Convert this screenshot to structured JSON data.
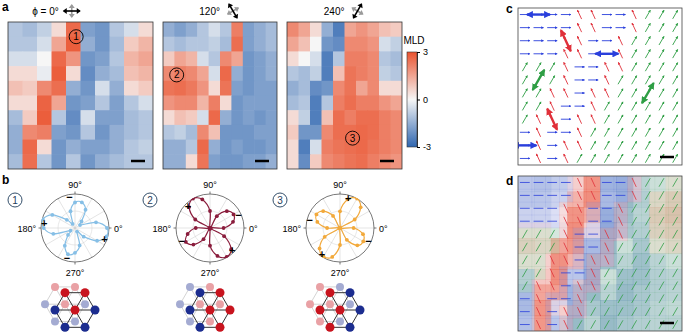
{
  "chart_data": [
    {
      "type": "heatmap",
      "panel": "a",
      "title": "ϕ = 0°",
      "phi": 0,
      "label": "1",
      "cells": [
        [
          -1.0,
          -1.2,
          -0.8,
          0.5,
          2.6,
          -1.8,
          -2.0,
          -1.0,
          -0.5,
          0.5
        ],
        [
          -1.0,
          -1.0,
          -0.5,
          1.5,
          2.8,
          -1.5,
          -2.0,
          -1.2,
          0.8,
          1.2
        ],
        [
          -0.5,
          -0.5,
          0.0,
          2.6,
          1.8,
          -2.0,
          -1.8,
          -1.0,
          1.2,
          1.5
        ],
        [
          0.5,
          0.5,
          -0.2,
          2.8,
          0.5,
          -2.2,
          -1.5,
          -1.2,
          1.0,
          1.2
        ],
        [
          1.0,
          0.8,
          2.0,
          2.5,
          -1.5,
          -2.0,
          -0.5,
          -1.5,
          0.5,
          0.8
        ],
        [
          0.5,
          0.5,
          2.7,
          1.5,
          -2.0,
          -1.8,
          -1.0,
          -1.8,
          -1.0,
          -0.5
        ],
        [
          -1.2,
          0.8,
          2.8,
          -1.0,
          -2.2,
          -0.5,
          -1.8,
          -1.8,
          -1.2,
          -1.0
        ],
        [
          -1.5,
          2.0,
          2.2,
          -1.8,
          -2.0,
          -1.0,
          -2.0,
          -1.5,
          -1.2,
          -1.0
        ],
        [
          -1.5,
          2.6,
          0.5,
          -2.0,
          -1.5,
          -1.8,
          -1.8,
          -1.5,
          -1.0,
          -0.8
        ],
        [
          -1.2,
          2.5,
          -1.0,
          -2.0,
          -1.0,
          -2.0,
          -1.5,
          -1.2,
          -1.0,
          -1.0
        ]
      ]
    },
    {
      "type": "heatmap",
      "title": "120°",
      "phi": 120,
      "label": "2",
      "cells": [
        [
          -1.5,
          -1.8,
          -1.5,
          -1.0,
          -0.5,
          -1.0,
          2.2,
          -1.8,
          -1.5,
          -1.2
        ],
        [
          -1.0,
          -1.2,
          -1.0,
          -1.0,
          -0.8,
          -1.2,
          2.5,
          -1.8,
          -1.5,
          -1.2
        ],
        [
          0.8,
          1.5,
          1.2,
          -0.5,
          -1.0,
          2.0,
          1.5,
          -2.0,
          -1.8,
          -1.5
        ],
        [
          2.0,
          2.2,
          2.0,
          1.5,
          -0.5,
          2.6,
          -1.5,
          -2.0,
          -1.8,
          -1.5
        ],
        [
          2.4,
          2.5,
          2.3,
          1.8,
          0.5,
          2.4,
          -1.8,
          -2.0,
          -1.8,
          -1.8
        ],
        [
          1.8,
          2.0,
          2.0,
          1.2,
          2.2,
          0.5,
          -2.0,
          -1.8,
          -1.8,
          -1.8
        ],
        [
          0.5,
          1.0,
          0.8,
          -0.5,
          2.6,
          -1.5,
          -2.0,
          -1.8,
          -2.0,
          -1.8
        ],
        [
          -1.0,
          -0.8,
          -1.2,
          2.0,
          1.0,
          -2.0,
          -2.0,
          -2.0,
          -1.8,
          -1.8
        ],
        [
          -1.5,
          -1.5,
          -1.0,
          2.6,
          -1.5,
          -2.0,
          -1.8,
          -2.0,
          -2.0,
          -1.8
        ],
        [
          -1.5,
          -1.5,
          0.5,
          2.4,
          -1.8,
          -2.0,
          -2.0,
          -1.8,
          -1.8,
          -1.5
        ]
      ]
    },
    {
      "type": "heatmap",
      "title": "240°",
      "phi": 240,
      "label": "3",
      "cells": [
        [
          2.0,
          1.5,
          0.5,
          -1.5,
          -2.5,
          1.5,
          1.8,
          1.5,
          1.0,
          0.8
        ],
        [
          1.5,
          1.0,
          0.0,
          -2.0,
          -2.2,
          2.0,
          2.0,
          1.8,
          -0.5,
          -0.8
        ],
        [
          0.5,
          0.0,
          -0.5,
          -2.5,
          -1.0,
          2.2,
          2.2,
          2.0,
          -1.0,
          -1.2
        ],
        [
          -1.0,
          -1.2,
          -0.8,
          -2.5,
          1.0,
          2.4,
          2.2,
          2.0,
          -0.8,
          -1.0
        ],
        [
          -1.5,
          -1.2,
          -2.2,
          -2.0,
          2.0,
          2.4,
          1.5,
          2.0,
          0.5,
          0.5
        ],
        [
          -1.2,
          -1.0,
          -2.5,
          -1.0,
          2.2,
          2.5,
          2.2,
          2.2,
          1.8,
          1.5
        ],
        [
          0.5,
          -0.8,
          -2.5,
          1.0,
          2.5,
          2.2,
          2.5,
          2.5,
          2.2,
          2.0
        ],
        [
          0.8,
          -2.0,
          -2.0,
          2.0,
          2.5,
          2.5,
          2.6,
          2.5,
          2.2,
          2.0
        ],
        [
          0.5,
          -2.5,
          -0.5,
          2.2,
          2.4,
          2.5,
          2.6,
          2.4,
          2.2,
          2.0
        ],
        [
          0.5,
          -2.2,
          0.8,
          2.0,
          2.2,
          2.4,
          2.5,
          2.2,
          2.0,
          1.8
        ]
      ],
      "colorbar": {
        "label": "MLD",
        "range": [
          -3,
          3
        ],
        "ticks": [
          3,
          0,
          -3
        ]
      }
    },
    {
      "type": "polar",
      "panel": "b",
      "label": "1",
      "color": "#86bfe6",
      "marker": "circle",
      "rlim": [
        0,
        1
      ],
      "theta": [
        0,
        15,
        30,
        45,
        60,
        75,
        90,
        105,
        120,
        135,
        150,
        165,
        180,
        195,
        210,
        225,
        240,
        255,
        270,
        285,
        300,
        315,
        330,
        345
      ],
      "values": [
        0.94,
        0.64,
        0.17,
        -0.27,
        -0.62,
        -0.78,
        -0.75,
        -0.51,
        -0.14,
        0.34,
        0.77,
        0.98,
        0.92,
        0.66,
        0.15,
        -0.29,
        -0.6,
        -0.8,
        -0.73,
        -0.53,
        -0.12,
        0.36,
        0.75,
        0.96
      ],
      "theta_ticks": [
        {
          "value": 0,
          "label": "0°"
        },
        {
          "value": 90,
          "label": "90°"
        },
        {
          "value": 180,
          "label": "180°"
        },
        {
          "value": 270,
          "label": "270°"
        }
      ],
      "annotations": [
        {
          "text": "+",
          "theta": 340
        },
        {
          "text": "+",
          "theta": 170
        },
        {
          "text": "−",
          "theta": 100
        },
        {
          "text": "−",
          "theta": 255
        }
      ],
      "lattice": {
        "colors": [
          "#c8141e",
          "#c8141e",
          "#1c2d8f",
          "#c8141e",
          "#1c2d8f",
          "#1c2d8f",
          "#1c2d8f"
        ]
      }
    },
    {
      "type": "polar",
      "label": "2",
      "color": "#8a1c3c",
      "marker": "circle",
      "rlim": [
        0,
        1
      ],
      "theta": [
        0,
        15,
        30,
        45,
        60,
        75,
        90,
        105,
        120,
        135,
        150,
        165,
        180,
        195,
        210,
        225,
        240,
        255,
        270,
        285,
        300,
        315,
        330,
        345
      ],
      "values": [
        -0.4,
        -0.7,
        -0.8,
        -0.7,
        -0.4,
        0,
        0.5,
        0.87,
        1.0,
        0.87,
        0.5,
        0.02,
        -0.42,
        -0.68,
        -0.82,
        -0.69,
        -0.38,
        0.03,
        0.52,
        0.85,
        0.98,
        0.88,
        0.48,
        -0.02
      ],
      "theta_ticks": [
        {
          "value": 0,
          "label": "0°"
        },
        {
          "value": 90,
          "label": "90°"
        },
        {
          "value": 180,
          "label": "180°"
        },
        {
          "value": 270,
          "label": "270°"
        }
      ],
      "annotations": [
        {
          "text": "+",
          "theta": 135
        },
        {
          "text": "−",
          "theta": 205
        },
        {
          "text": "+",
          "theta": 315
        },
        {
          "text": "−",
          "theta": 25
        }
      ],
      "lattice": {
        "colors": [
          "#1c2d8f",
          "#c8141e",
          "#1c2d8f",
          "#c8141e",
          "#c8141e",
          "#1c2d8f",
          "#c8141e"
        ]
      }
    },
    {
      "type": "polar",
      "label": "3",
      "color": "#f2a93b",
      "marker": "circle",
      "rlim": [
        0,
        1
      ],
      "theta": [
        0,
        15,
        30,
        45,
        60,
        75,
        90,
        105,
        120,
        135,
        150,
        165,
        180,
        195,
        210,
        225,
        240,
        255,
        270,
        285,
        300,
        315,
        330,
        345
      ],
      "values": [
        -0.4,
        0.01,
        0.5,
        0.86,
        1.0,
        0.87,
        0.49,
        -0.01,
        -0.41,
        -0.7,
        -0.8,
        -0.69,
        -0.38,
        0.02,
        0.52,
        0.85,
        0.97,
        0.88,
        0.5,
        0,
        -0.4,
        -0.72,
        -0.79,
        -0.7
      ],
      "theta_ticks": [
        {
          "value": 0,
          "label": "0°"
        },
        {
          "value": 90,
          "label": "90°"
        },
        {
          "value": 180,
          "label": "180°"
        },
        {
          "value": 270,
          "label": "270°"
        }
      ],
      "annotations": [
        {
          "text": "+",
          "theta": 75
        },
        {
          "text": "−",
          "theta": 165
        },
        {
          "text": "+",
          "theta": 235
        },
        {
          "text": "−",
          "theta": 335
        }
      ],
      "lattice": {
        "colors": [
          "#c8141e",
          "#1c2d8f",
          "#c8141e",
          "#c8141e",
          "#1c2d8f",
          "#c8141e",
          "#1c2d8f"
        ]
      }
    },
    {
      "type": "vector_map",
      "panel": "c",
      "colors": [
        "#2a3fdc",
        "#e0303a",
        "#2e9e44"
      ],
      "domain_angles": [
        0,
        115,
        60
      ],
      "cells": [
        [
          0,
          0,
          0,
          0,
          1,
          1,
          0,
          0,
          1,
          2,
          2,
          2
        ],
        [
          0,
          0,
          0,
          0,
          1,
          1,
          0,
          0,
          1,
          2,
          2,
          2
        ],
        [
          0,
          0,
          0,
          1,
          1,
          0,
          0,
          1,
          2,
          2,
          2,
          2
        ],
        [
          0,
          0,
          0,
          1,
          1,
          0,
          0,
          1,
          2,
          2,
          2,
          2
        ],
        [
          2,
          2,
          2,
          1,
          0,
          0,
          1,
          1,
          2,
          2,
          2,
          2
        ],
        [
          2,
          2,
          2,
          1,
          0,
          0,
          1,
          2,
          2,
          2,
          2,
          2
        ],
        [
          2,
          2,
          1,
          1,
          0,
          1,
          1,
          2,
          2,
          2,
          2,
          2
        ],
        [
          2,
          2,
          1,
          0,
          0,
          1,
          2,
          2,
          2,
          2,
          2,
          2
        ],
        [
          2,
          1,
          1,
          0,
          1,
          1,
          2,
          2,
          2,
          2,
          2,
          2
        ],
        [
          0,
          1,
          0,
          0,
          1,
          2,
          2,
          2,
          2,
          2,
          2,
          2
        ],
        [
          0,
          1,
          0,
          1,
          1,
          2,
          2,
          2,
          2,
          2,
          2,
          2
        ],
        [
          0,
          1,
          0,
          1,
          2,
          2,
          2,
          2,
          2,
          2,
          2,
          2
        ]
      ],
      "arrows": [
        {
          "domain": 0,
          "col": 1,
          "row": 0
        },
        {
          "domain": 1,
          "col": 3,
          "row": 2
        },
        {
          "domain": 0,
          "col": 6,
          "row": 3
        },
        {
          "domain": 2,
          "col": 1,
          "row": 5
        },
        {
          "domain": 1,
          "col": 2,
          "row": 8
        },
        {
          "domain": 2,
          "col": 9,
          "row": 6
        },
        {
          "domain": 0,
          "col": 0,
          "row": 10
        }
      ]
    },
    {
      "type": "overlay",
      "panel": "d"
    }
  ]
}
